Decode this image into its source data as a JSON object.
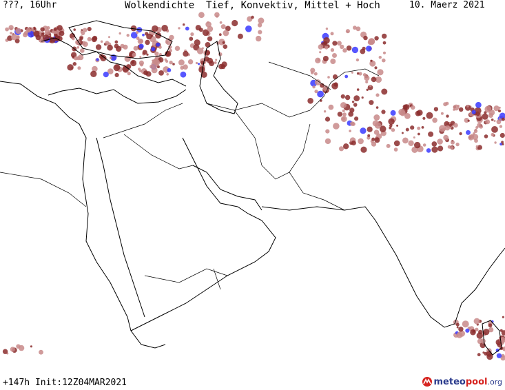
{
  "header": {
    "left": "???, 16Uhr",
    "title": "Wolkendichte  Tief, Konvektiv, Mittel + Hoch",
    "date": "10. Maerz 2021"
  },
  "footer": {
    "run": "+147h Init:12Z04MAR2021",
    "logo": {
      "part1": "meteo",
      "part2": "pool",
      "part3": ".org"
    }
  },
  "colors": {
    "coast": "#000000",
    "cloud_low": "#c88a8a",
    "cloud_mid": "#8b2d2d",
    "cloud_high": "#3a3aff"
  },
  "icons": [
    "meteopool-logo-icon"
  ]
}
